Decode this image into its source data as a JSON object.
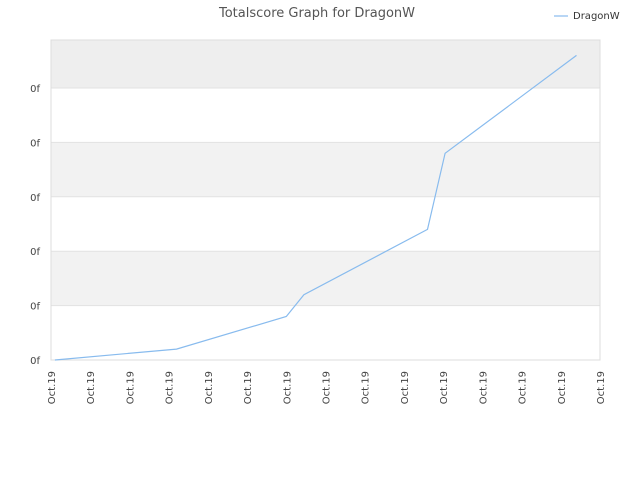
{
  "chart_data": {
    "type": "line",
    "title": "Totalscore Graph for DragonW",
    "xlabel": "",
    "ylabel": "",
    "x_ticks": [
      "Oct.19",
      "Oct.19",
      "Oct.19",
      "Oct.19",
      "Oct.19",
      "Oct.19",
      "Oct.19",
      "Oct.19",
      "Oct.19",
      "Oct.19",
      "Oct.19",
      "Oct.19",
      "Oct.19",
      "Oct.19",
      "Oct.19"
    ],
    "y_ticks": [
      "0f",
      "0f",
      "0f",
      "0f",
      "0f",
      "0f"
    ],
    "x_range": [
      0,
      14
    ],
    "ylim": [
      0,
      1
    ],
    "grid": true,
    "legend_position": "top-right",
    "series": [
      {
        "name": "DragonW",
        "color": "#88bbee",
        "x": [
          0.1,
          3.2,
          6.0,
          6.45,
          9.6,
          10.05,
          13.4
        ],
        "y": [
          0.0,
          0.04,
          0.16,
          0.24,
          0.48,
          0.76,
          1.12
        ]
      }
    ]
  }
}
